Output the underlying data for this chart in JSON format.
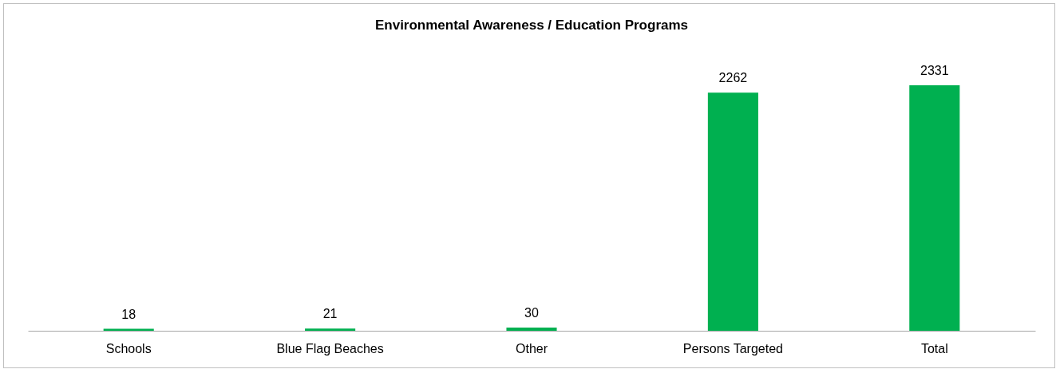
{
  "chart_data": {
    "type": "bar",
    "title": "Environmental Awareness / Education Programs",
    "categories": [
      "Schools",
      "Blue Flag Beaches",
      "Other",
      "Persons Targeted",
      "Total"
    ],
    "values": [
      18,
      21,
      30,
      2262,
      2331
    ],
    "color": "#00b050",
    "data_labels": true
  }
}
